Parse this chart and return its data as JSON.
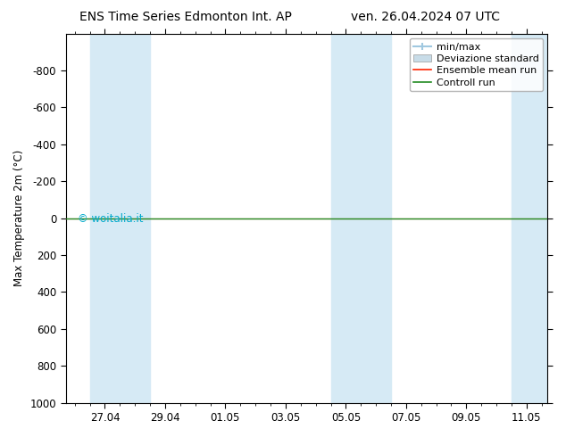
{
  "title_left": "ENS Time Series Edmonton Int. AP",
  "title_right": "ven. 26.04.2024 07 UTC",
  "ylabel": "Max Temperature 2m (°C)",
  "ylim_top": -1000,
  "ylim_bottom": 1000,
  "yticks": [
    -800,
    -600,
    -400,
    -200,
    0,
    200,
    400,
    600,
    800,
    1000
  ],
  "xtick_labels": [
    "27.04",
    "29.04",
    "01.05",
    "03.05",
    "05.05",
    "07.05",
    "09.05",
    "11.05"
  ],
  "xtick_positions": [
    1,
    3,
    5,
    7,
    9,
    11,
    13,
    15
  ],
  "xlim": [
    -0.3,
    15.7
  ],
  "shaded_ranges": [
    [
      0.5,
      2.5
    ],
    [
      8.5,
      9.5
    ],
    [
      9.5,
      10.5
    ],
    [
      14.5,
      15.7
    ]
  ],
  "shaded_color": "#d6eaf5",
  "green_line_color": "#228B22",
  "red_line_color": "#ff2200",
  "background_color": "#ffffff",
  "watermark": "© woitalia.it",
  "watermark_color": "#00aacc",
  "legend_labels": [
    "min/max",
    "Deviazione standard",
    "Ensemble mean run",
    "Controll run"
  ],
  "legend_line_colors": [
    "#a0c8e0",
    "#c8dce8",
    "#ff2200",
    "#228B22"
  ],
  "title_fontsize": 10,
  "tick_fontsize": 8.5,
  "ylabel_fontsize": 8.5,
  "legend_fontsize": 8
}
